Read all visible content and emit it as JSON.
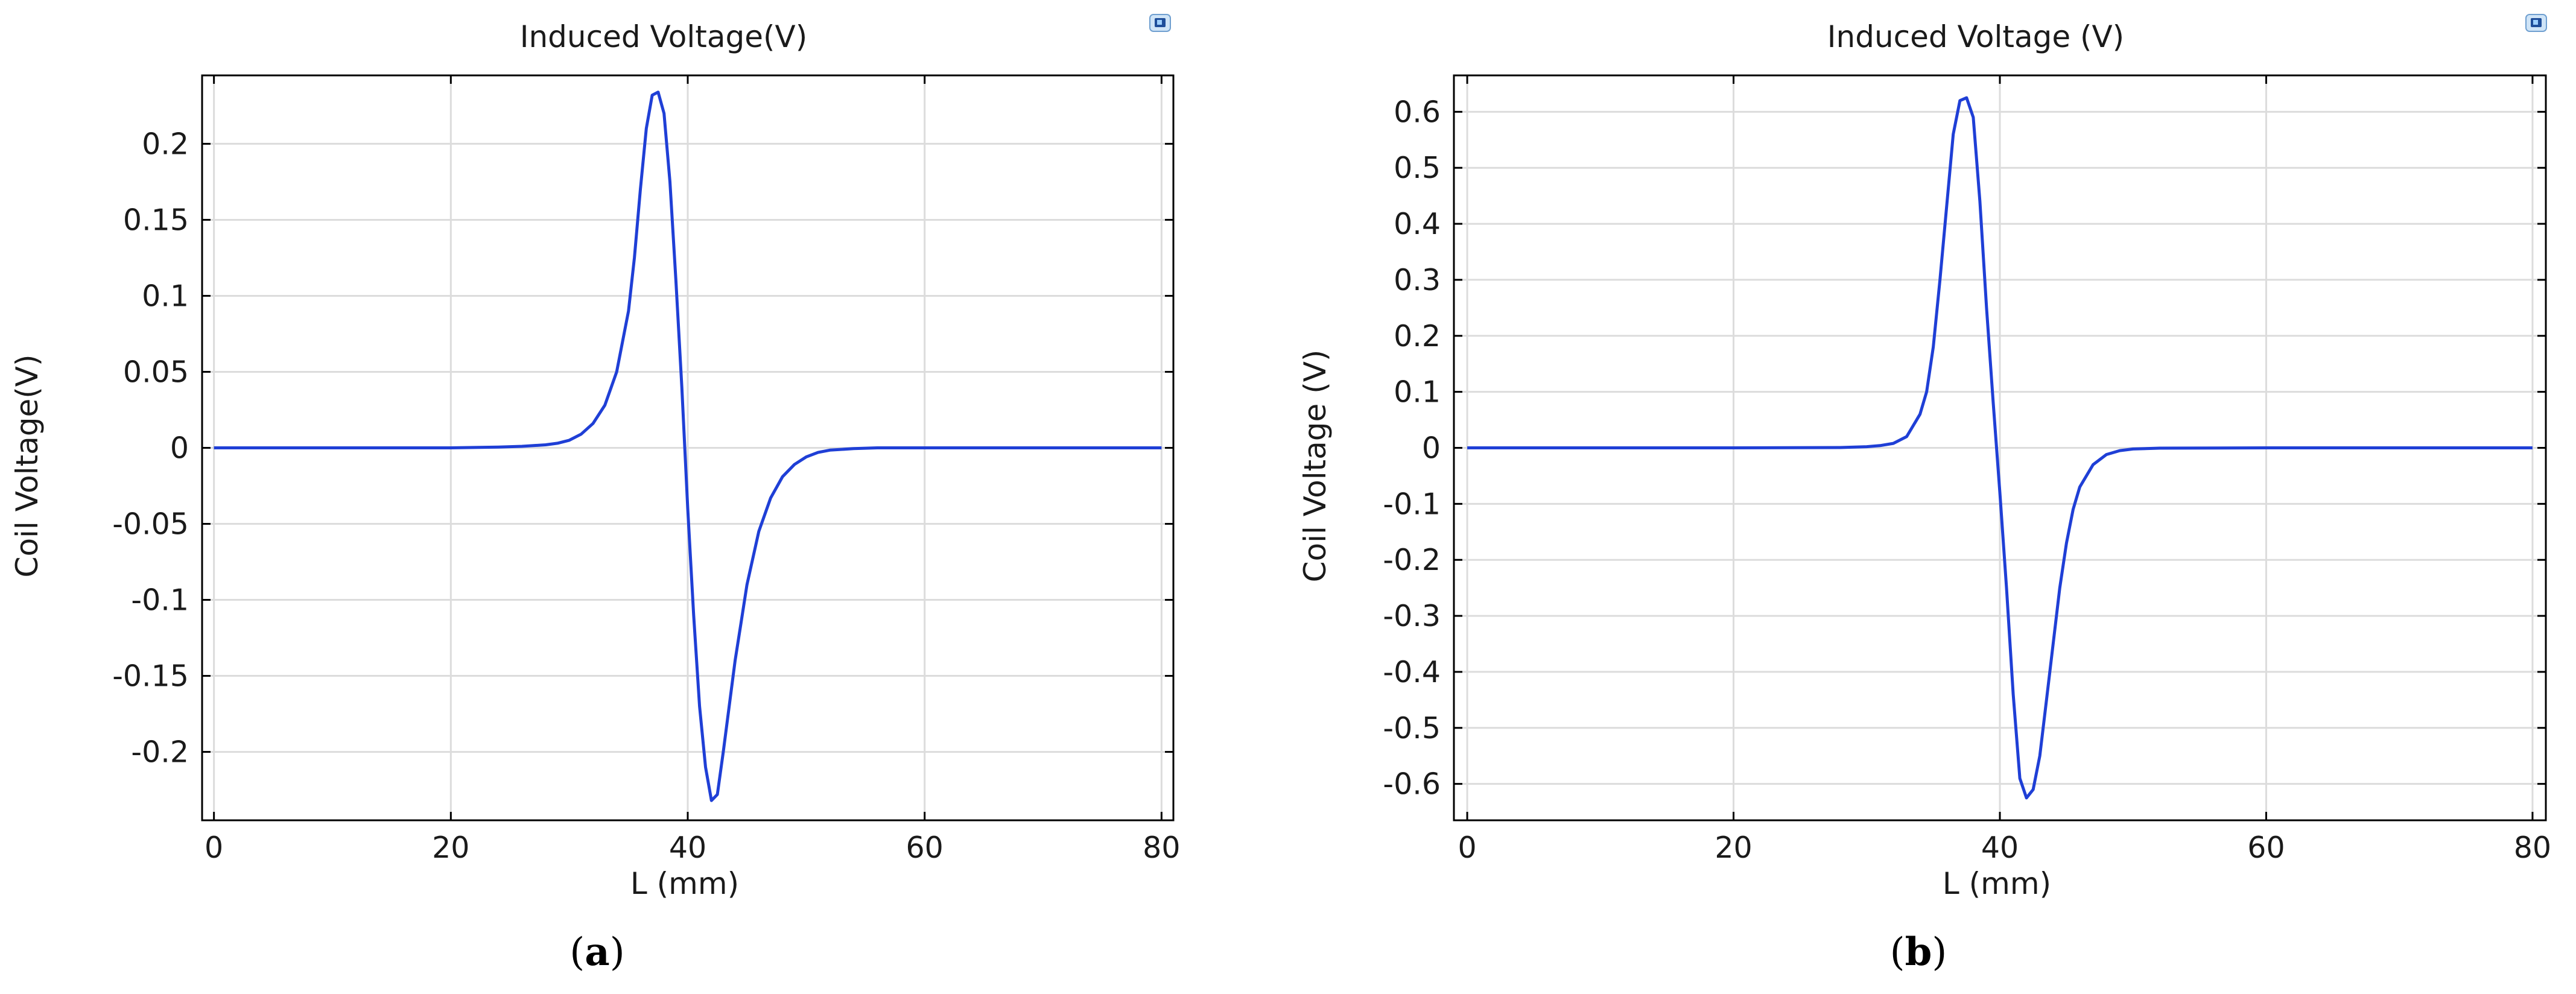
{
  "colors": {
    "series": "#1f3fd6",
    "grid": "#dcdcdc",
    "frame": "#000000"
  },
  "panels": [
    {
      "caption_letter": "a",
      "icon": "image-export-icon"
    },
    {
      "caption_letter": "b",
      "icon": "image-export-icon"
    }
  ],
  "chart_data": [
    {
      "type": "line",
      "title": "Induced Voltage(V)",
      "xlabel": "L (mm)",
      "ylabel": "Coil Voltage(V)",
      "xlim": [
        -1,
        81
      ],
      "ylim": [
        -0.245,
        0.245
      ],
      "xticks": [
        0,
        20,
        40,
        60,
        80
      ],
      "yticks": [
        0.2,
        0.15,
        0.1,
        0.05,
        0,
        -0.05,
        -0.1,
        -0.15,
        -0.2
      ],
      "ytick_labels": [
        "0.2",
        "0.15",
        "0.1",
        "0.05",
        "0",
        "-0.05",
        "-0.1",
        "-0.15",
        "-0.2"
      ],
      "grid": true,
      "series": [
        {
          "x": [
            0,
            10,
            20,
            24,
            26,
            28,
            29,
            30,
            31,
            32,
            33,
            34,
            35,
            35.5,
            36,
            36.5,
            37,
            37.5,
            38,
            38.5,
            39,
            39.5,
            40,
            40.5,
            41,
            41.5,
            42,
            42.5,
            43,
            43.5,
            44,
            44.5,
            45,
            46,
            47,
            48,
            49,
            50,
            51,
            52,
            54,
            56,
            60,
            70,
            80
          ],
          "y": [
            0,
            0,
            0,
            0.0005,
            0.001,
            0.002,
            0.003,
            0.005,
            0.009,
            0.016,
            0.028,
            0.05,
            0.09,
            0.125,
            0.17,
            0.21,
            0.232,
            0.234,
            0.22,
            0.175,
            0.11,
            0.04,
            -0.04,
            -0.11,
            -0.17,
            -0.21,
            -0.232,
            -0.228,
            -0.2,
            -0.17,
            -0.14,
            -0.115,
            -0.09,
            -0.055,
            -0.033,
            -0.019,
            -0.011,
            -0.006,
            -0.003,
            -0.0015,
            -0.0005,
            0,
            0,
            0,
            0
          ]
        }
      ]
    },
    {
      "type": "line",
      "title": "Induced Voltage (V)",
      "xlabel": "L (mm)",
      "ylabel": "Coil Voltage (V)",
      "xlim": [
        -1,
        81
      ],
      "ylim": [
        -0.665,
        0.665
      ],
      "xticks": [
        0,
        20,
        40,
        60,
        80
      ],
      "yticks": [
        0.6,
        0.5,
        0.4,
        0.3,
        0.2,
        0.1,
        0,
        -0.1,
        -0.2,
        -0.3,
        -0.4,
        -0.5,
        -0.6
      ],
      "ytick_labels": [
        "0.6",
        "0.5",
        "0.4",
        "0.3",
        "0.2",
        "0.1",
        "0",
        "-0.1",
        "-0.2",
        "-0.3",
        "-0.4",
        "-0.5",
        "-0.6"
      ],
      "grid": true,
      "series": [
        {
          "x": [
            0,
            10,
            20,
            28,
            30,
            31,
            32,
            33,
            34,
            34.5,
            35,
            35.5,
            36,
            36.5,
            37,
            37.5,
            38,
            38.5,
            39,
            39.5,
            40,
            40.5,
            41,
            41.5,
            42,
            42.5,
            43,
            43.5,
            44,
            44.5,
            45,
            45.5,
            46,
            47,
            48,
            49,
            50,
            52,
            60,
            70,
            80
          ],
          "y": [
            0,
            0,
            0,
            0.0005,
            0.002,
            0.004,
            0.008,
            0.02,
            0.06,
            0.1,
            0.18,
            0.3,
            0.43,
            0.56,
            0.62,
            0.625,
            0.59,
            0.44,
            0.25,
            0.08,
            -0.08,
            -0.25,
            -0.44,
            -0.59,
            -0.625,
            -0.61,
            -0.55,
            -0.45,
            -0.35,
            -0.25,
            -0.17,
            -0.11,
            -0.07,
            -0.03,
            -0.012,
            -0.005,
            -0.002,
            -0.0005,
            0,
            0,
            0
          ]
        }
      ]
    }
  ]
}
